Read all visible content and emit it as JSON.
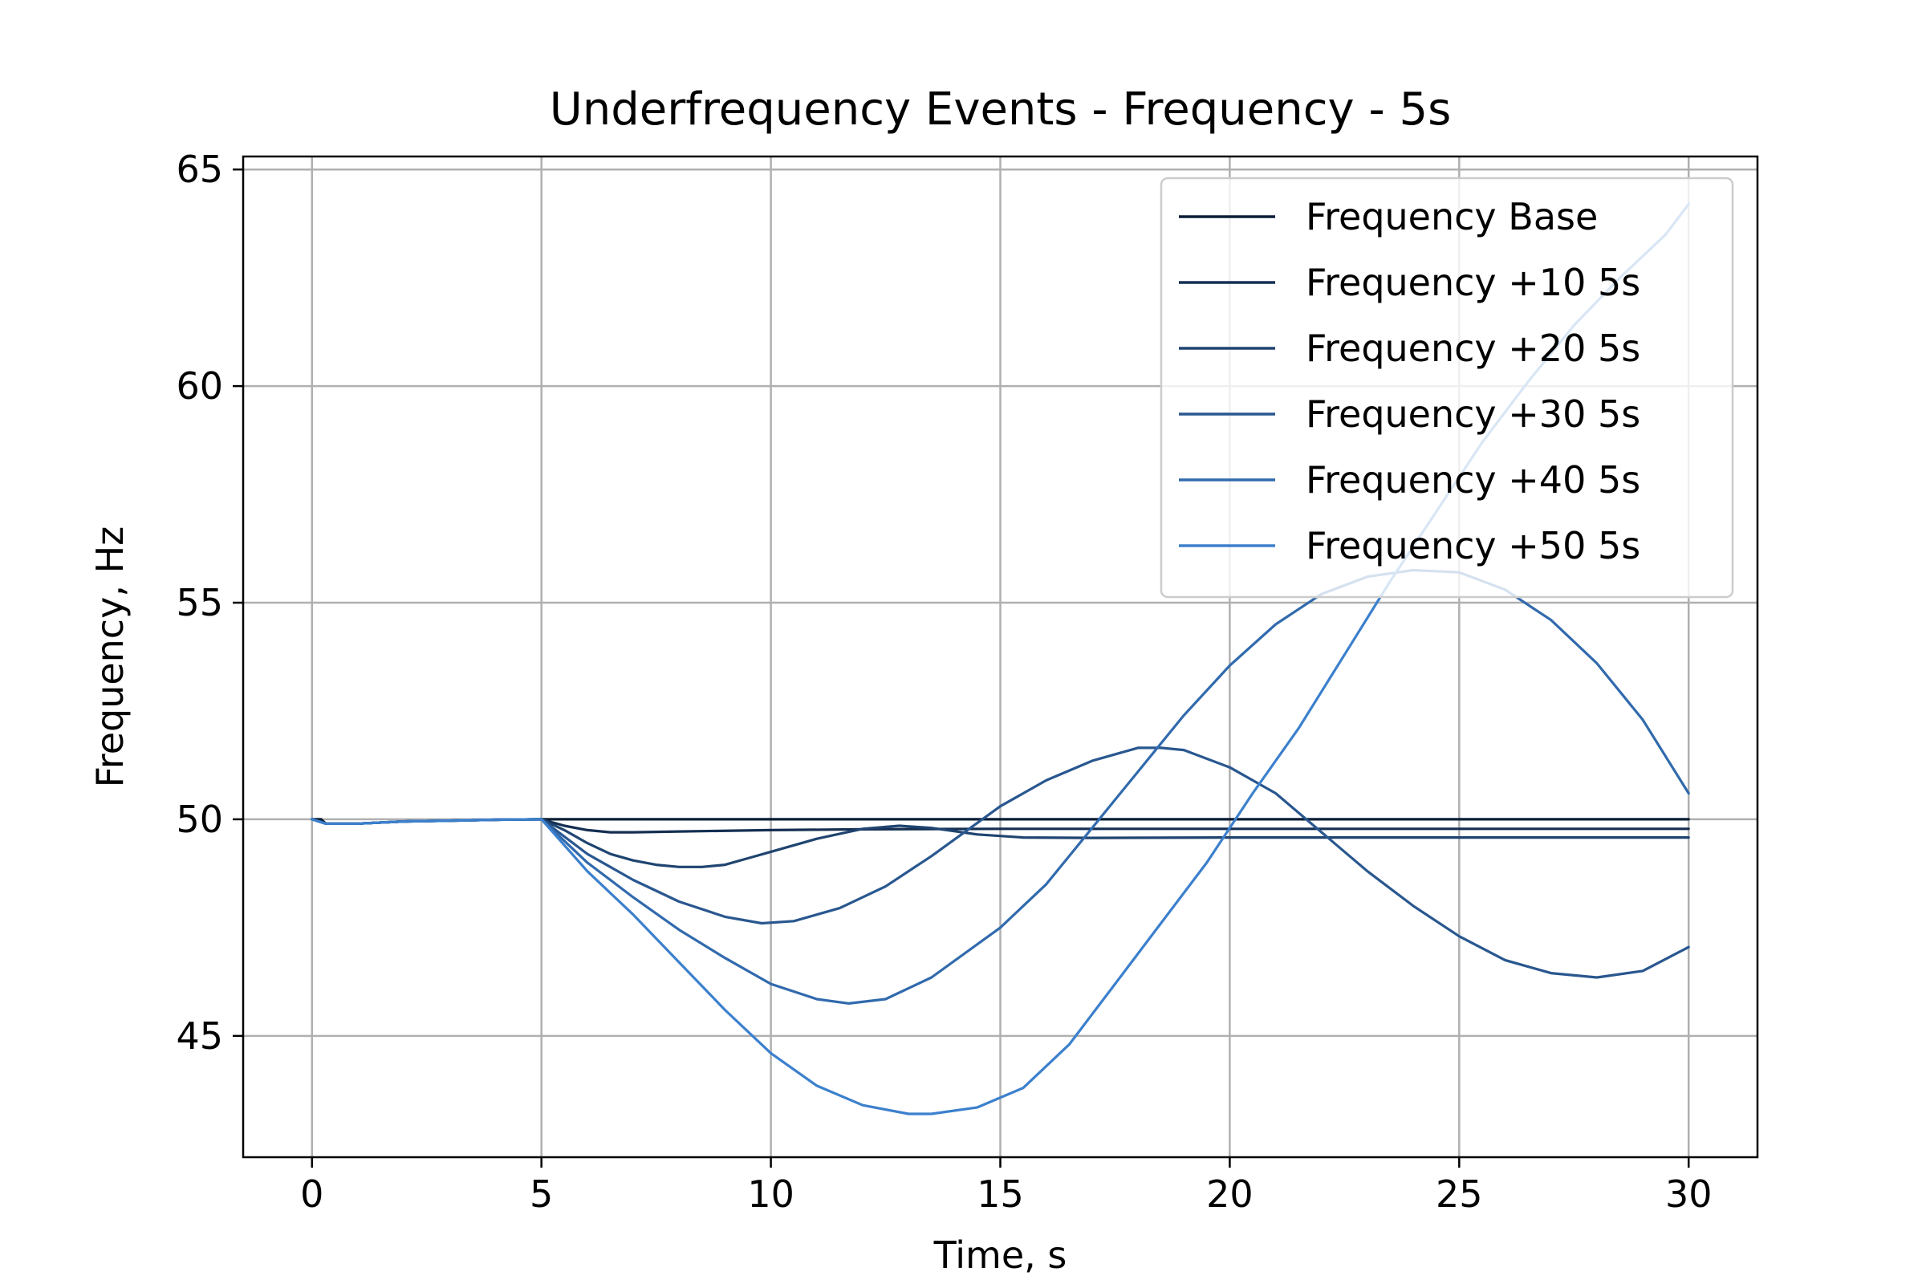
{
  "chart_data": {
    "type": "line",
    "title": "Underfrequency Events - Frequency - 5s",
    "xlabel": "Time, s",
    "ylabel": "Frequency, Hz",
    "xlim": [
      -1.5,
      31.5
    ],
    "ylim": [
      42.2,
      65.3
    ],
    "xticks": [
      "0",
      "5",
      "10",
      "15",
      "20",
      "25",
      "30"
    ],
    "yticks": [
      "45",
      "50",
      "55",
      "60",
      "65"
    ],
    "grid": true,
    "legend_position": "top-right",
    "series": [
      {
        "name": "Frequency Base",
        "color": "#0b1e36",
        "points": [
          [
            0,
            50.0
          ],
          [
            0.2,
            50.0
          ],
          [
            0.3,
            49.9
          ],
          [
            0.5,
            49.9
          ],
          [
            1,
            49.9
          ],
          [
            2,
            49.95
          ],
          [
            3,
            49.97
          ],
          [
            4,
            49.99
          ],
          [
            5,
            50.0
          ],
          [
            30,
            50.0
          ]
        ]
      },
      {
        "name": "Frequency +10 5s",
        "color": "#142f52",
        "points": [
          [
            0,
            50.0
          ],
          [
            0.3,
            49.9
          ],
          [
            1,
            49.9
          ],
          [
            2,
            49.95
          ],
          [
            3,
            49.97
          ],
          [
            4,
            49.99
          ],
          [
            5,
            50.0
          ],
          [
            5.5,
            49.85
          ],
          [
            6,
            49.75
          ],
          [
            6.5,
            49.7
          ],
          [
            7,
            49.7
          ],
          [
            8,
            49.72
          ],
          [
            10,
            49.75
          ],
          [
            12,
            49.77
          ],
          [
            15,
            49.78
          ],
          [
            20,
            49.78
          ],
          [
            30,
            49.78
          ]
        ]
      },
      {
        "name": "Frequency +20 5s",
        "color": "#1f4470",
        "points": [
          [
            0,
            50.0
          ],
          [
            0.3,
            49.9
          ],
          [
            1,
            49.9
          ],
          [
            2,
            49.95
          ],
          [
            3,
            49.97
          ],
          [
            4,
            49.99
          ],
          [
            5,
            50.0
          ],
          [
            5.5,
            49.75
          ],
          [
            6,
            49.45
          ],
          [
            6.5,
            49.2
          ],
          [
            7,
            49.05
          ],
          [
            7.5,
            48.95
          ],
          [
            8,
            48.9
          ],
          [
            8.5,
            48.9
          ],
          [
            9,
            48.95
          ],
          [
            9.5,
            49.1
          ],
          [
            10,
            49.25
          ],
          [
            11,
            49.55
          ],
          [
            12,
            49.78
          ],
          [
            12.8,
            49.85
          ],
          [
            13.5,
            49.8
          ],
          [
            14.5,
            49.65
          ],
          [
            15.5,
            49.58
          ],
          [
            17,
            49.57
          ],
          [
            20,
            49.58
          ],
          [
            25,
            49.58
          ],
          [
            30,
            49.58
          ]
        ]
      },
      {
        "name": "Frequency +30 5s",
        "color": "#29578f",
        "points": [
          [
            0,
            50.0
          ],
          [
            0.3,
            49.9
          ],
          [
            1,
            49.9
          ],
          [
            2,
            49.95
          ],
          [
            3,
            49.97
          ],
          [
            4,
            49.99
          ],
          [
            5,
            50.0
          ],
          [
            5.5,
            49.6
          ],
          [
            6,
            49.2
          ],
          [
            7,
            48.6
          ],
          [
            8,
            48.1
          ],
          [
            9,
            47.75
          ],
          [
            9.8,
            47.6
          ],
          [
            10.5,
            47.65
          ],
          [
            11.5,
            47.95
          ],
          [
            12.5,
            48.45
          ],
          [
            13.5,
            49.15
          ],
          [
            15,
            50.3
          ],
          [
            16,
            50.9
          ],
          [
            17,
            51.35
          ],
          [
            18,
            51.65
          ],
          [
            18.5,
            51.65
          ],
          [
            19,
            51.6
          ],
          [
            20,
            51.2
          ],
          [
            21,
            50.6
          ],
          [
            22,
            49.7
          ],
          [
            23,
            48.8
          ],
          [
            24,
            48.0
          ],
          [
            25,
            47.3
          ],
          [
            26,
            46.75
          ],
          [
            27,
            46.45
          ],
          [
            28,
            46.35
          ],
          [
            29,
            46.5
          ],
          [
            30,
            47.05
          ]
        ]
      },
      {
        "name": "Frequency +40 5s",
        "color": "#316aad",
        "points": [
          [
            0,
            50.0
          ],
          [
            0.3,
            49.9
          ],
          [
            1,
            49.9
          ],
          [
            2,
            49.95
          ],
          [
            3,
            49.97
          ],
          [
            4,
            49.99
          ],
          [
            5,
            50.0
          ],
          [
            5.5,
            49.5
          ],
          [
            6,
            49.0
          ],
          [
            7,
            48.2
          ],
          [
            8,
            47.45
          ],
          [
            9,
            46.8
          ],
          [
            10,
            46.2
          ],
          [
            11,
            45.85
          ],
          [
            11.7,
            45.75
          ],
          [
            12.5,
            45.85
          ],
          [
            13.5,
            46.35
          ],
          [
            15,
            47.5
          ],
          [
            16,
            48.5
          ],
          [
            17,
            49.8
          ],
          [
            18,
            51.1
          ],
          [
            19,
            52.4
          ],
          [
            20,
            53.55
          ],
          [
            21,
            54.5
          ],
          [
            22,
            55.2
          ],
          [
            23,
            55.6
          ],
          [
            24,
            55.75
          ],
          [
            25,
            55.7
          ],
          [
            26,
            55.3
          ],
          [
            27,
            54.6
          ],
          [
            28,
            53.6
          ],
          [
            29,
            52.3
          ],
          [
            30,
            50.6
          ]
        ]
      },
      {
        "name": "Frequency +50 5s",
        "color": "#3c80cd",
        "points": [
          [
            0,
            50.0
          ],
          [
            0.3,
            49.9
          ],
          [
            1,
            49.9
          ],
          [
            2,
            49.95
          ],
          [
            3,
            49.97
          ],
          [
            4,
            49.99
          ],
          [
            5,
            50.0
          ],
          [
            5.5,
            49.4
          ],
          [
            6,
            48.8
          ],
          [
            7,
            47.8
          ],
          [
            8,
            46.7
          ],
          [
            9,
            45.6
          ],
          [
            10,
            44.6
          ],
          [
            11,
            43.85
          ],
          [
            12,
            43.4
          ],
          [
            13,
            43.2
          ],
          [
            13.5,
            43.2
          ],
          [
            14.5,
            43.35
          ],
          [
            15.5,
            43.8
          ],
          [
            16.5,
            44.8
          ],
          [
            17.5,
            46.2
          ],
          [
            18.5,
            47.6
          ],
          [
            19.5,
            49.0
          ],
          [
            20.5,
            50.6
          ],
          [
            21.5,
            52.1
          ],
          [
            22.5,
            53.8
          ],
          [
            23.5,
            55.5
          ],
          [
            24.5,
            57.1
          ],
          [
            25.5,
            58.7
          ],
          [
            26.5,
            60.1
          ],
          [
            27.5,
            61.4
          ],
          [
            28.5,
            62.5
          ],
          [
            29.5,
            63.5
          ],
          [
            30,
            64.2
          ]
        ]
      }
    ]
  }
}
